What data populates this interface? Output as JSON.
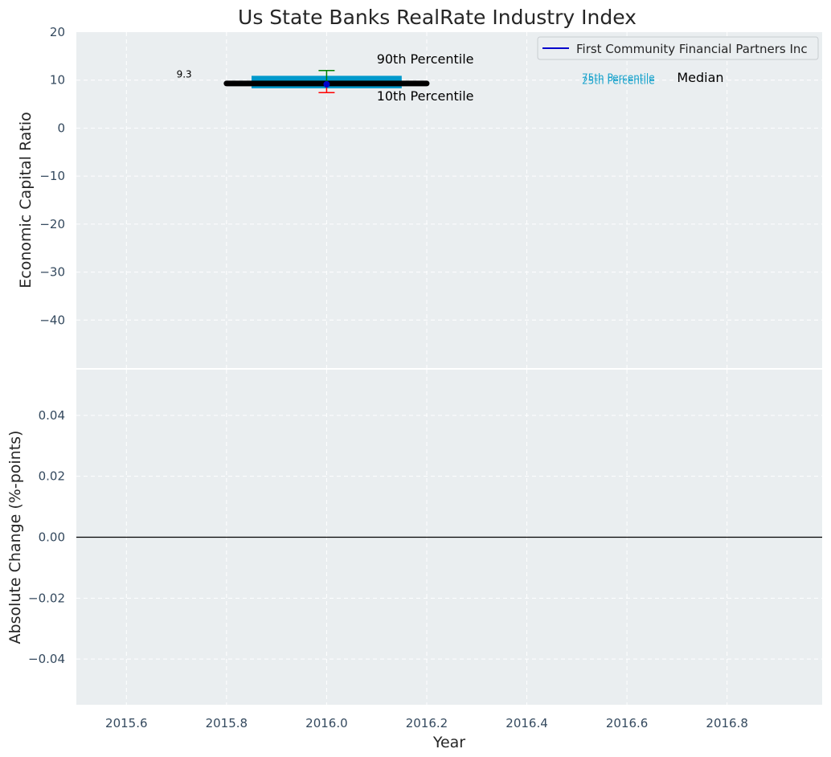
{
  "chart_data": [
    {
      "type": "box",
      "title": "Us State Banks RealRate Industry Index",
      "xlabel": "",
      "ylabel": "Economic Capital Ratio",
      "xlim": [
        2015.5,
        2016.99
      ],
      "ylim": [
        -50,
        20
      ],
      "yticks": [
        20,
        10,
        0,
        -10,
        -20,
        -30,
        -40
      ],
      "ytick_labels": [
        "20",
        "10",
        "0",
        "−10",
        "−20",
        "−30",
        "−40"
      ],
      "grid": true,
      "box": {
        "x": 2016.0,
        "q1": 8.3,
        "q3": 10.9,
        "median": 9.4,
        "p10": 7.4,
        "p90": 12.0,
        "half_width": 0.15
      },
      "median_line": {
        "x_start": 2015.8,
        "x_end": 2016.2,
        "y": 9.3
      },
      "series": [
        {
          "name": "First Community Financial Partners Inc",
          "x": [
            2016.0
          ],
          "y": [
            9.3
          ]
        }
      ],
      "value_label": {
        "x": 2015.7,
        "y": 10.5,
        "text": "9.3"
      },
      "annotations": [
        {
          "text": "90th Percentile",
          "x": 2016.1,
          "y": 13.5
        },
        {
          "text": "10th Percentile",
          "x": 2016.1,
          "y": 5.8
        },
        {
          "text": "75th Percentile",
          "x": 2016.51,
          "y": 9.9
        },
        {
          "text": "25th Percentile",
          "x": 2016.51,
          "y": 9.2
        },
        {
          "text": "Median",
          "x": 2016.7,
          "y": 9.6
        }
      ],
      "legend": {
        "placement": "top-right",
        "entries": [
          "First Community Financial Partners Inc"
        ]
      },
      "colors": {
        "box": "#0099cc",
        "median": "#000000",
        "series": "#0000cc",
        "p90": "#008000",
        "p10": "#ff0000",
        "quartile_text": "#1aa3cc",
        "background": "#eaeef0"
      }
    },
    {
      "type": "line",
      "title": "",
      "xlabel": "Year",
      "ylabel": "Absolute Change (%-points)",
      "xlim": [
        2015.5,
        2016.99
      ],
      "ylim": [
        -0.055,
        0.055
      ],
      "xticks": [
        2015.6,
        2015.8,
        2016.0,
        2016.2,
        2016.4,
        2016.6,
        2016.8
      ],
      "xtick_labels": [
        "2015.6",
        "2015.8",
        "2016.0",
        "2016.2",
        "2016.4",
        "2016.6",
        "2016.8"
      ],
      "yticks": [
        0.04,
        0.02,
        0.0,
        -0.02,
        -0.04
      ],
      "ytick_labels": [
        "0.04",
        "0.02",
        "0.00",
        "−0.02",
        "−0.04"
      ],
      "grid": true,
      "reference_line": {
        "y": 0.0,
        "color": "#000000"
      },
      "series": []
    }
  ]
}
